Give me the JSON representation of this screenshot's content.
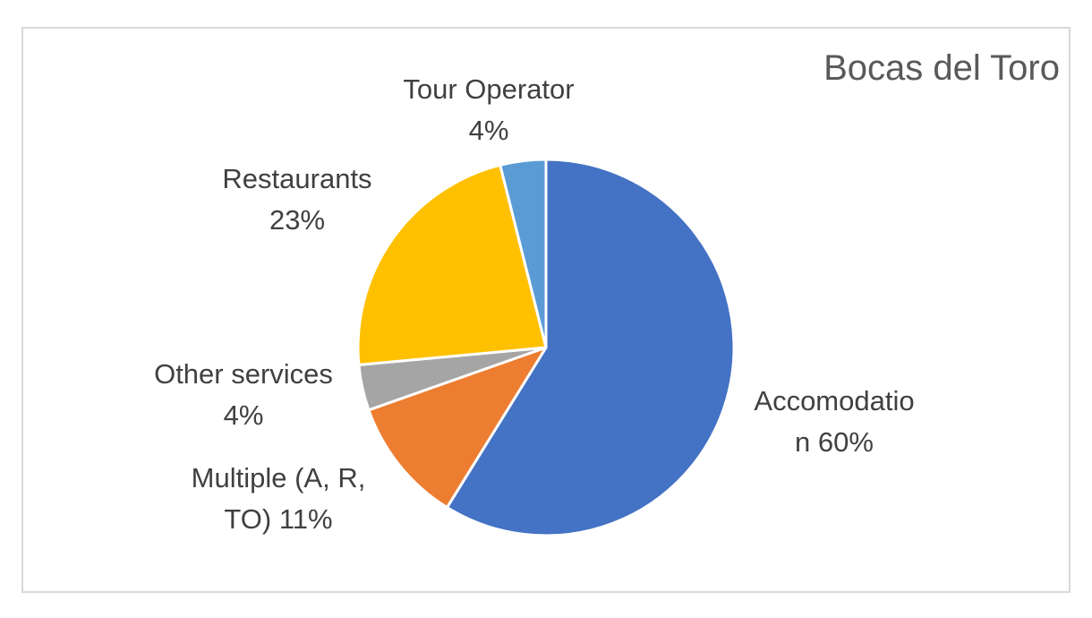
{
  "chart_data": {
    "type": "pie",
    "title": "Bocas del Toro",
    "slices": [
      {
        "label_lines": [
          "Accomodatio",
          "n 60%"
        ],
        "name": "Accomodation",
        "value": 60,
        "color": "#4472C4"
      },
      {
        "label_lines": [
          "Multiple (A, R,",
          "TO) 11%"
        ],
        "name": "Multiple (A, R, TO)",
        "value": 11,
        "color": "#ED7D31"
      },
      {
        "label_lines": [
          "Other services",
          "4%"
        ],
        "name": "Other services",
        "value": 4,
        "color": "#A5A5A5"
      },
      {
        "label_lines": [
          "Restaurants",
          "23%"
        ],
        "name": "Restaurants",
        "value": 23,
        "color": "#FFC000"
      },
      {
        "label_lines": [
          "Tour Operator",
          "4%"
        ],
        "name": "Tour Operator",
        "value": 4,
        "color": "#5B9BD5"
      }
    ]
  }
}
